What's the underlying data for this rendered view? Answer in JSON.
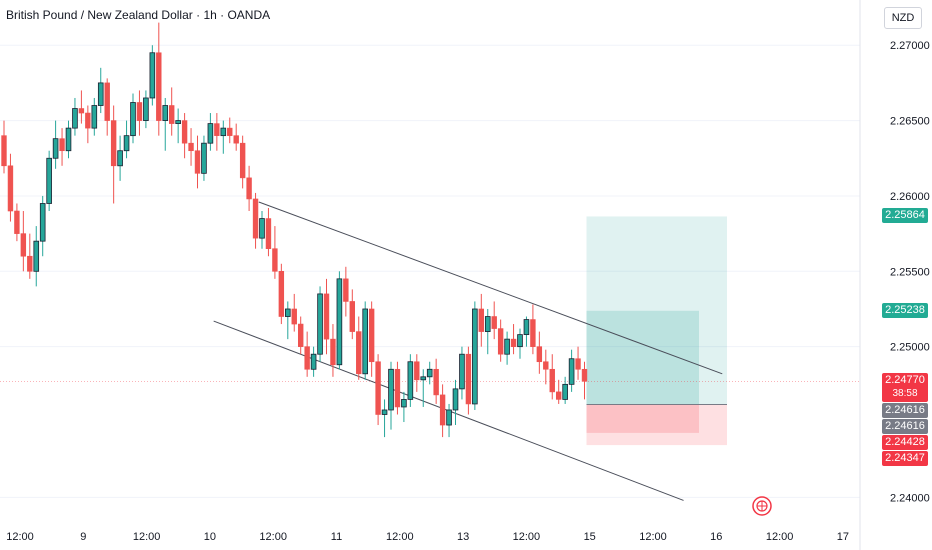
{
  "header": {
    "symbol": "British Pound / New Zealand Dollar",
    "interval": "1h",
    "source": "OANDA",
    "sep": " · "
  },
  "currency": "NZD",
  "colors": {
    "up": "#26a69a",
    "down": "#ef5350",
    "candle_up_fill": "#ffffff",
    "line": "#4a4e5a",
    "profit_zone": "#26a69a",
    "loss_zone": "#f7525f",
    "tag_green": "#22ab94",
    "tag_red": "#f23645",
    "tag_gray": "#787b86"
  },
  "price_axis": {
    "min": 2.2385,
    "max": 2.273,
    "ticks": [
      "2.27000",
      "2.26500",
      "2.26000",
      "2.25500",
      "2.25000",
      "2.24000"
    ]
  },
  "time_axis": {
    "labels": [
      "12:00",
      "9",
      "12:00",
      "10",
      "12:00",
      "11",
      "12:00",
      "13",
      "12:00",
      "15",
      "12:00",
      "16",
      "12:00",
      "17"
    ]
  },
  "price_tags": [
    {
      "label": "2.25864",
      "color": "green"
    },
    {
      "label": "2.25238",
      "color": "green"
    },
    {
      "label": "2.24770",
      "sub": "38:58",
      "color": "red"
    },
    {
      "label": "2.24616",
      "color": "gray"
    },
    {
      "label": "2.24616",
      "color": "gray"
    },
    {
      "label": "2.24428",
      "color": "red"
    },
    {
      "label": "2.24347",
      "color": "red"
    }
  ],
  "chart_data": {
    "type": "candlestick",
    "last_price": 2.2477,
    "last_price_countdown": "38:58",
    "position": {
      "entry": 2.24616,
      "take_profit": 2.25864,
      "inner_target": 2.25238,
      "stop_loss": 2.24347,
      "inner_stop": 2.24428
    },
    "channel": [
      {
        "x1": 24,
        "y1": 2.2596,
        "x2": 85,
        "y2": 2.2482
      },
      {
        "x1": 17,
        "y1": 2.2517,
        "x2": 79,
        "y2": 2.2398
      }
    ],
    "ohlc": [
      [
        2.264,
        2.265,
        2.2615,
        2.262
      ],
      [
        2.262,
        2.2628,
        2.2583,
        2.259
      ],
      [
        2.259,
        2.2595,
        2.257,
        2.2575
      ],
      [
        2.2575,
        2.259,
        2.255,
        2.256
      ],
      [
        2.256,
        2.2575,
        2.2545,
        2.255
      ],
      [
        2.255,
        2.258,
        2.254,
        2.257
      ],
      [
        2.257,
        2.26,
        2.256,
        2.2595
      ],
      [
        2.2595,
        2.263,
        2.259,
        2.2625
      ],
      [
        2.2625,
        2.265,
        2.2618,
        2.2638
      ],
      [
        2.2638,
        2.2645,
        2.262,
        2.263
      ],
      [
        2.263,
        2.265,
        2.2625,
        2.2645
      ],
      [
        2.2645,
        2.2665,
        2.264,
        2.2658
      ],
      [
        2.2658,
        2.267,
        2.2648,
        2.2655
      ],
      [
        2.2655,
        2.266,
        2.2635,
        2.2645
      ],
      [
        2.2645,
        2.2665,
        2.264,
        2.266
      ],
      [
        2.266,
        2.2685,
        2.2655,
        2.2675
      ],
      [
        2.2675,
        2.2678,
        2.264,
        2.265
      ],
      [
        2.265,
        2.266,
        2.2595,
        2.262
      ],
      [
        2.262,
        2.264,
        2.261,
        2.263
      ],
      [
        2.263,
        2.265,
        2.2625,
        2.264
      ],
      [
        2.264,
        2.2668,
        2.2635,
        2.2662
      ],
      [
        2.2662,
        2.267,
        2.264,
        2.265
      ],
      [
        2.265,
        2.267,
        2.2645,
        2.2665
      ],
      [
        2.2665,
        2.27,
        2.266,
        2.2695
      ],
      [
        2.2695,
        2.2715,
        2.264,
        2.265
      ],
      [
        2.265,
        2.2665,
        2.263,
        2.266
      ],
      [
        2.266,
        2.2672,
        2.264,
        2.2648
      ],
      [
        2.2648,
        2.2658,
        2.2635,
        2.265
      ],
      [
        2.265,
        2.2655,
        2.2625,
        2.2635
      ],
      [
        2.2635,
        2.2645,
        2.262,
        2.263
      ],
      [
        2.263,
        2.264,
        2.2605,
        2.2615
      ],
      [
        2.2615,
        2.264,
        2.261,
        2.2635
      ],
      [
        2.2635,
        2.2655,
        2.263,
        2.2648
      ],
      [
        2.2648,
        2.2655,
        2.263,
        2.264
      ],
      [
        2.264,
        2.265,
        2.2628,
        2.2645
      ],
      [
        2.2645,
        2.2652,
        2.2635,
        2.264
      ],
      [
        2.264,
        2.2648,
        2.263,
        2.2635
      ],
      [
        2.2635,
        2.264,
        2.2605,
        2.2612
      ],
      [
        2.2612,
        2.262,
        2.259,
        2.2598
      ],
      [
        2.2598,
        2.2602,
        2.2565,
        2.2572
      ],
      [
        2.2572,
        2.259,
        2.2565,
        2.2585
      ],
      [
        2.2585,
        2.2592,
        2.256,
        2.2565
      ],
      [
        2.2565,
        2.258,
        2.2545,
        2.255
      ],
      [
        2.255,
        2.2555,
        2.2515,
        2.252
      ],
      [
        2.252,
        2.253,
        2.2505,
        2.2525
      ],
      [
        2.2525,
        2.2535,
        2.251,
        2.2515
      ],
      [
        2.2515,
        2.252,
        2.2495,
        2.25
      ],
      [
        2.25,
        2.251,
        2.248,
        2.2485
      ],
      [
        2.2485,
        2.25,
        2.248,
        2.2495
      ],
      [
        2.2495,
        2.254,
        2.249,
        2.2535
      ],
      [
        2.2535,
        2.2545,
        2.2495,
        2.2505
      ],
      [
        2.2505,
        2.2515,
        2.248,
        2.2488
      ],
      [
        2.2488,
        2.255,
        2.2485,
        2.2545
      ],
      [
        2.2545,
        2.2553,
        2.252,
        2.253
      ],
      [
        2.253,
        2.2538,
        2.2505,
        2.251
      ],
      [
        2.251,
        2.252,
        2.2478,
        2.2482
      ],
      [
        2.2482,
        2.253,
        2.2478,
        2.2525
      ],
      [
        2.2525,
        2.253,
        2.248,
        2.249
      ],
      [
        2.249,
        2.2495,
        2.2448,
        2.2455
      ],
      [
        2.2455,
        2.2465,
        2.244,
        2.2458
      ],
      [
        2.2458,
        2.249,
        2.2445,
        2.2485
      ],
      [
        2.2485,
        2.249,
        2.2455,
        2.246
      ],
      [
        2.246,
        2.247,
        2.245,
        2.2465
      ],
      [
        2.2465,
        2.2495,
        2.246,
        2.249
      ],
      [
        2.249,
        2.2495,
        2.247,
        2.2478
      ],
      [
        2.2478,
        2.2485,
        2.246,
        2.248
      ],
      [
        2.248,
        2.249,
        2.2475,
        2.2485
      ],
      [
        2.2485,
        2.2492,
        2.2462,
        2.2468
      ],
      [
        2.2468,
        2.2475,
        2.244,
        2.2448
      ],
      [
        2.2448,
        2.2462,
        2.244,
        2.2458
      ],
      [
        2.2458,
        2.2478,
        2.2448,
        2.2472
      ],
      [
        2.2472,
        2.25,
        2.2465,
        2.2495
      ],
      [
        2.2495,
        2.25,
        2.2455,
        2.2462
      ],
      [
        2.2462,
        2.253,
        2.2458,
        2.2525
      ],
      [
        2.2525,
        2.2535,
        2.25,
        2.251
      ],
      [
        2.251,
        2.2525,
        2.2495,
        2.252
      ],
      [
        2.252,
        2.253,
        2.2505,
        2.2512
      ],
      [
        2.2512,
        2.2518,
        2.249,
        2.2495
      ],
      [
        2.2495,
        2.251,
        2.2488,
        2.2505
      ],
      [
        2.2505,
        2.2515,
        2.2495,
        2.25
      ],
      [
        2.25,
        2.2512,
        2.2492,
        2.2508
      ],
      [
        2.2508,
        2.252,
        2.25,
        2.2518
      ],
      [
        2.2518,
        2.2528,
        2.2495,
        2.25
      ],
      [
        2.25,
        2.251,
        2.2482,
        2.249
      ],
      [
        2.249,
        2.2498,
        2.2475,
        2.2485
      ],
      [
        2.2485,
        2.2495,
        2.2465,
        2.247
      ],
      [
        2.247,
        2.2478,
        2.2462,
        2.2465
      ],
      [
        2.2465,
        2.248,
        2.2462,
        2.2475
      ],
      [
        2.2475,
        2.2498,
        2.247,
        2.2492
      ],
      [
        2.2492,
        2.25,
        2.2478,
        2.2485
      ],
      [
        2.2485,
        2.249,
        2.2465,
        2.2477
      ]
    ]
  }
}
